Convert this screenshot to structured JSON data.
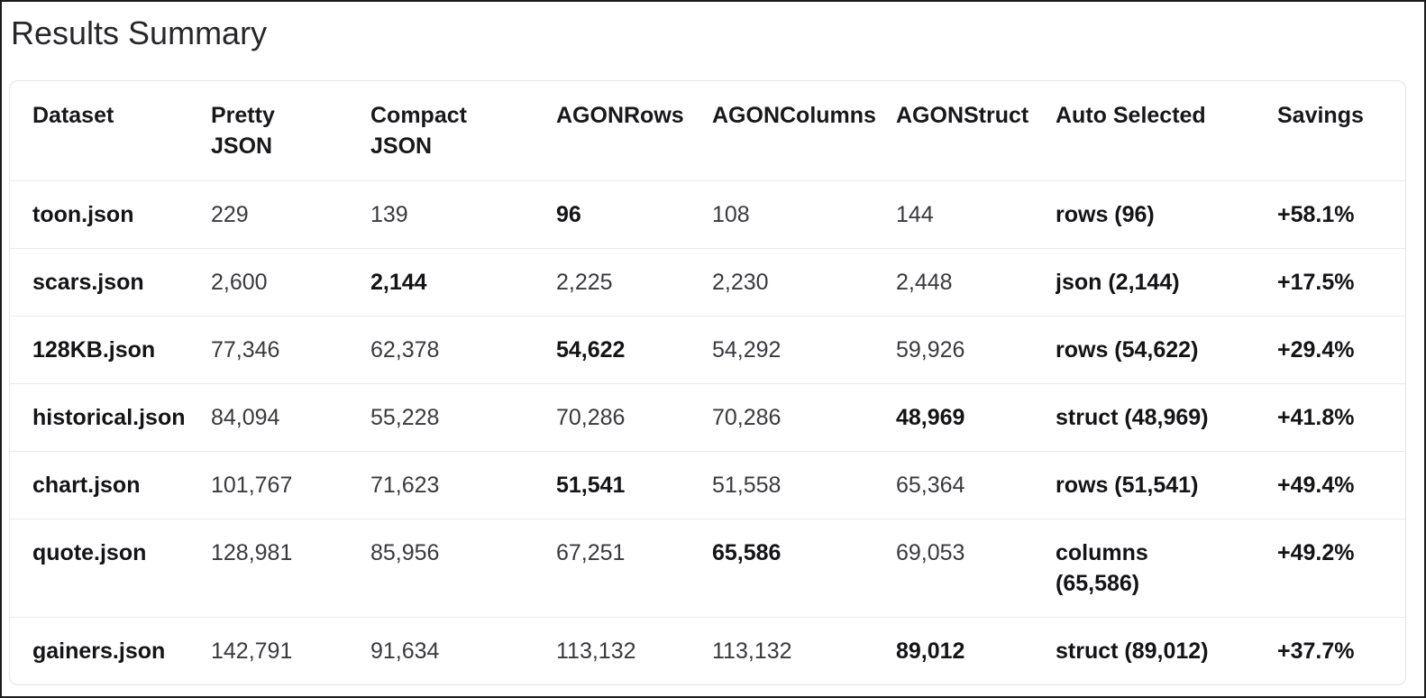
{
  "page": {
    "title": "Results Summary"
  },
  "colors": {
    "frame_border": "#1b1b1b",
    "card_border": "#e4e4e7",
    "row_divider": "#ececee",
    "text_normal": "#3a3a3e",
    "text_bold": "#141417"
  },
  "table": {
    "columns": [
      {
        "key": "dataset",
        "label": "Dataset"
      },
      {
        "key": "pretty",
        "label": "Pretty\nJSON"
      },
      {
        "key": "compact",
        "label": "Compact\nJSON"
      },
      {
        "key": "rows",
        "label": "AGONRows"
      },
      {
        "key": "columns",
        "label": "AGONColumns"
      },
      {
        "key": "struct",
        "label": "AGONStruct"
      },
      {
        "key": "auto",
        "label": "Auto Selected"
      },
      {
        "key": "savings",
        "label": "Savings"
      }
    ],
    "rows": [
      {
        "dataset": "toon.json",
        "pretty": "229",
        "compact": "139",
        "rows": "96",
        "columns": "108",
        "struct": "144",
        "auto": "rows (96)",
        "savings": "+58.1%",
        "winner": "rows"
      },
      {
        "dataset": "scars.json",
        "pretty": "2,600",
        "compact": "2,144",
        "rows": "2,225",
        "columns": "2,230",
        "struct": "2,448",
        "auto": "json (2,144)",
        "savings": "+17.5%",
        "winner": "compact"
      },
      {
        "dataset": "128KB.json",
        "pretty": "77,346",
        "compact": "62,378",
        "rows": "54,622",
        "columns": "54,292",
        "struct": "59,926",
        "auto": "rows (54,622)",
        "savings": "+29.4%",
        "winner": "rows"
      },
      {
        "dataset": "historical.json",
        "pretty": "84,094",
        "compact": "55,228",
        "rows": "70,286",
        "columns": "70,286",
        "struct": "48,969",
        "auto": "struct (48,969)",
        "savings": "+41.8%",
        "winner": "struct"
      },
      {
        "dataset": "chart.json",
        "pretty": "101,767",
        "compact": "71,623",
        "rows": "51,541",
        "columns": "51,558",
        "struct": "65,364",
        "auto": "rows (51,541)",
        "savings": "+49.4%",
        "winner": "rows"
      },
      {
        "dataset": "quote.json",
        "pretty": "128,981",
        "compact": "85,956",
        "rows": "67,251",
        "columns": "65,586",
        "struct": "69,053",
        "auto": "columns\n(65,586)",
        "savings": "+49.2%",
        "winner": "columns"
      },
      {
        "dataset": "gainers.json",
        "pretty": "142,791",
        "compact": "91,634",
        "rows": "113,132",
        "columns": "113,132",
        "struct": "89,012",
        "auto": "struct (89,012)",
        "savings": "+37.7%",
        "winner": "struct"
      }
    ]
  }
}
